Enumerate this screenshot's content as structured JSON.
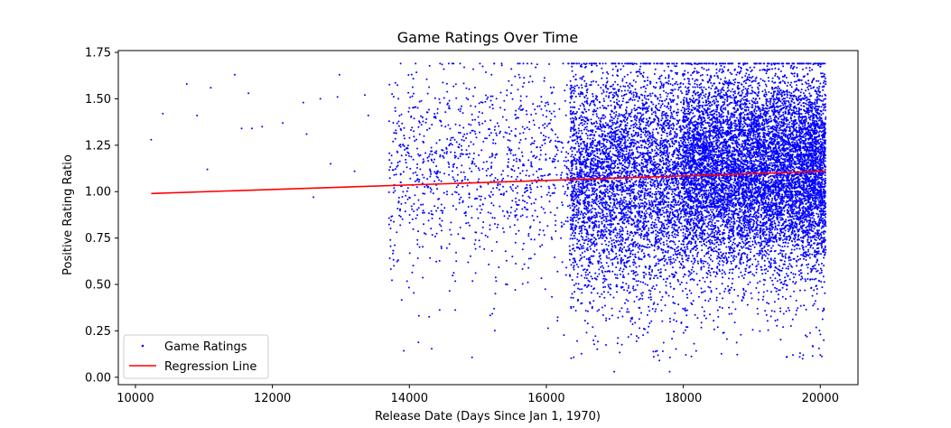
{
  "chart_data": {
    "type": "scatter",
    "title": "Game Ratings Over Time",
    "xlabel": "Release Date (Days Since Jan 1, 1970)",
    "ylabel": "Positive Rating Ratio",
    "xlim": [
      9750,
      20550
    ],
    "ylim": [
      -0.04,
      1.76
    ],
    "x_ticks": [
      10000,
      12000,
      14000,
      16000,
      18000,
      20000
    ],
    "y_ticks": [
      0.0,
      0.25,
      0.5,
      0.75,
      1.0,
      1.25,
      1.5,
      1.75
    ],
    "x_tick_labels": [
      "10000",
      "12000",
      "14000",
      "16000",
      "18000",
      "20000"
    ],
    "y_tick_labels": [
      "0.00",
      "0.25",
      "0.50",
      "0.75",
      "1.00",
      "1.25",
      "1.50",
      "1.75"
    ],
    "grid": false,
    "legend_position": "lower-left",
    "series": [
      {
        "name": "Game Ratings",
        "kind": "scatter",
        "color": "#0000ff",
        "marker": "dot",
        "point_count_rendered": 16000,
        "x_range": [
          10230,
          20080
        ],
        "y_range": [
          0.03,
          1.69
        ],
        "x": [
          10230,
          10400,
          10750,
          10900,
          11050,
          11100,
          11450,
          11550,
          11650,
          11700,
          11850,
          12150,
          12450,
          12500,
          12600,
          12700,
          12850,
          12950,
          12980,
          13200,
          13350,
          13400,
          14800,
          15350,
          15200,
          15600,
          17800,
          17650,
          17700,
          19600,
          19700,
          20000,
          20050,
          20060
        ],
        "y": [
          1.28,
          1.42,
          1.58,
          1.41,
          1.12,
          1.56,
          1.63,
          1.34,
          1.53,
          1.34,
          1.35,
          1.37,
          1.48,
          1.31,
          0.97,
          1.5,
          1.15,
          1.51,
          1.63,
          1.11,
          1.52,
          1.41,
          1.67,
          1.68,
          1.63,
          1.63,
          0.03,
          0.09,
          0.14,
          0.12,
          0.11,
          0.12,
          0.2,
          1.62
        ]
      },
      {
        "name": "Regression Line",
        "kind": "line",
        "color": "#ff0000",
        "x": [
          10230,
          20080
        ],
        "y": [
          0.99,
          1.11
        ]
      }
    ]
  }
}
